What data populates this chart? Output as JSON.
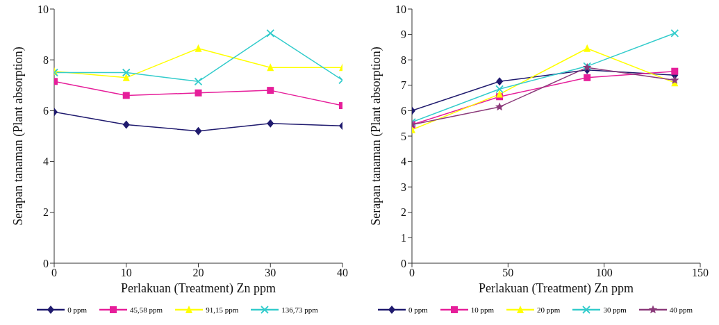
{
  "chart_data": [
    {
      "type": "line",
      "xlabel": "Perlakuan (Treatment) Zn ppm",
      "ylabel": "Serapan tanaman (Plant absorption)",
      "x": [
        0,
        10,
        20,
        30,
        40
      ],
      "xlim": [
        0,
        40
      ],
      "xticks": [
        0,
        10,
        20,
        30,
        40
      ],
      "ylim": [
        0,
        10
      ],
      "yticks": [
        0,
        2,
        4,
        6,
        8,
        10
      ],
      "legend": "bottom",
      "grid": false,
      "series": [
        {
          "name": "0 ppm",
          "color": "#1f1a6e",
          "marker": "diamond",
          "values": [
            5.95,
            5.45,
            5.2,
            5.5,
            5.4
          ]
        },
        {
          "name": "45,58 ppm",
          "color": "#e61e9a",
          "marker": "square",
          "values": [
            7.15,
            6.6,
            6.7,
            6.8,
            6.2
          ]
        },
        {
          "name": "91,15 ppm",
          "color": "#ffff00",
          "marker": "triangle",
          "values": [
            7.55,
            7.3,
            8.45,
            7.7,
            7.7
          ]
        },
        {
          "name": "136,73 ppm",
          "color": "#33cccc",
          "marker": "cross",
          "values": [
            7.5,
            7.5,
            7.15,
            9.05,
            7.2
          ]
        }
      ]
    },
    {
      "type": "line",
      "xlabel": "Perlakuan (Treatment) Zn ppm",
      "ylabel": "Serapan tanaman (Plant absorption)",
      "x": [
        0,
        45.58,
        91.15,
        136.73
      ],
      "xlim": [
        0,
        150
      ],
      "xticks": [
        0,
        50,
        100,
        150
      ],
      "ylim": [
        0,
        10
      ],
      "yticks": [
        0,
        1,
        2,
        3,
        4,
        5,
        6,
        7,
        8,
        9,
        10
      ],
      "legend": "bottom",
      "grid": false,
      "series": [
        {
          "name": "0 ppm",
          "color": "#1f1a6e",
          "marker": "diamond",
          "values": [
            6.0,
            7.15,
            7.6,
            7.4
          ]
        },
        {
          "name": "10 ppm",
          "color": "#e61e9a",
          "marker": "square",
          "values": [
            5.45,
            6.55,
            7.3,
            7.55
          ]
        },
        {
          "name": "20 ppm",
          "color": "#ffff00",
          "marker": "triangle",
          "values": [
            5.25,
            6.65,
            8.45,
            7.1
          ]
        },
        {
          "name": "30 ppm",
          "color": "#33cccc",
          "marker": "cross",
          "values": [
            5.55,
            6.85,
            7.75,
            9.05
          ]
        },
        {
          "name": "40 ppm",
          "color": "#8b3a7a",
          "marker": "star",
          "values": [
            5.45,
            6.15,
            7.7,
            7.2
          ]
        }
      ]
    }
  ]
}
